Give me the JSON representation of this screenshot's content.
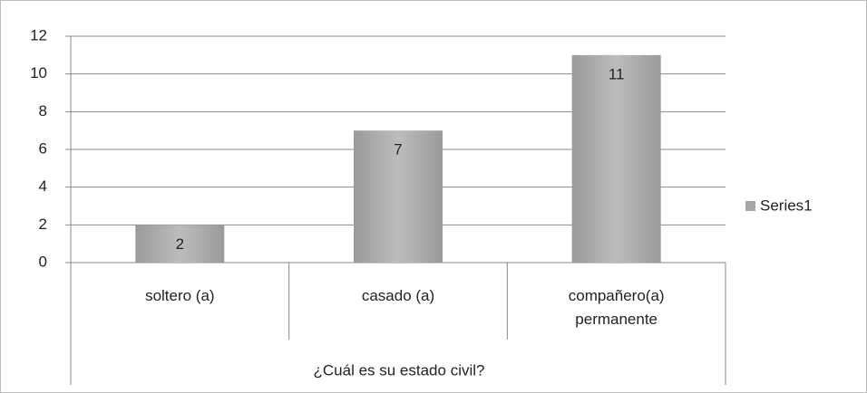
{
  "chart_data": {
    "type": "bar",
    "categories": [
      "soltero (a)",
      "casado (a)",
      "compañero(a) permanente"
    ],
    "series": [
      {
        "name": "Series1",
        "color": "#a6a6a6",
        "values": [
          2,
          7,
          11
        ]
      }
    ],
    "x_label": "¿Cuál es su estado civil?",
    "ylim": [
      0,
      12
    ],
    "yticks": [
      0,
      2,
      4,
      6,
      8,
      10,
      12
    ],
    "grid": true,
    "legend": "right"
  }
}
